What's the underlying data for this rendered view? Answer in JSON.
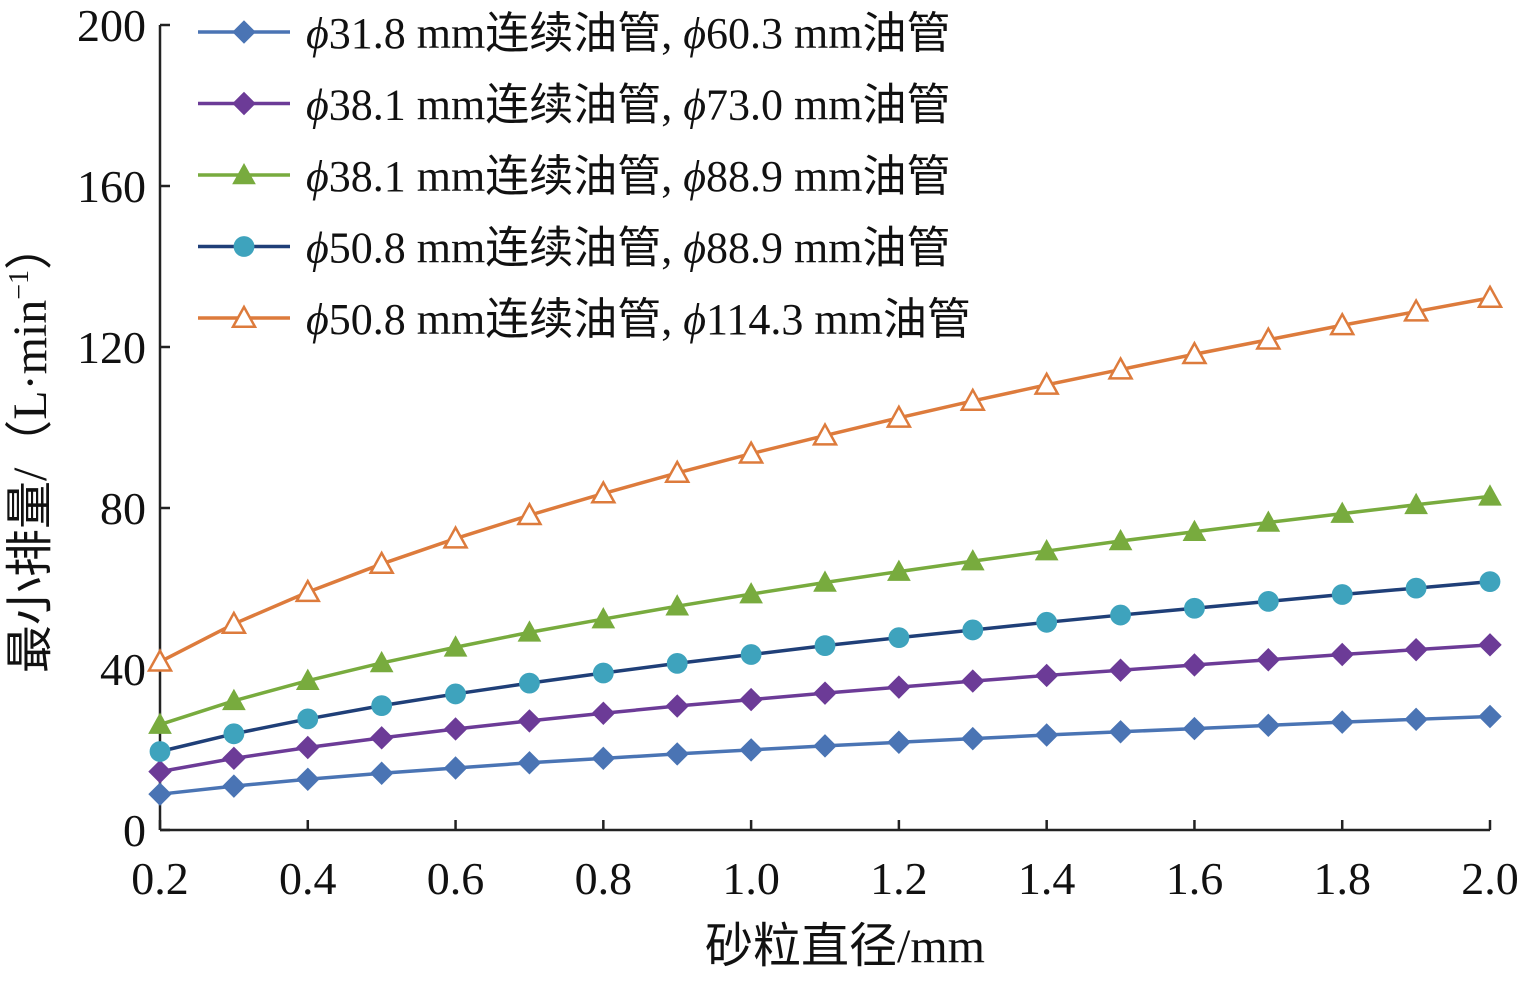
{
  "chart_data": {
    "type": "line",
    "title": "",
    "xlabel": "砂粒直径/mm",
    "ylabel_main": "最小排量/（L·min",
    "ylabel_sup": "−1",
    "ylabel_close": "）",
    "xlim": [
      0.2,
      2.0
    ],
    "ylim": [
      0,
      200
    ],
    "xticks": [
      "0.2",
      "0.4",
      "0.6",
      "0.8",
      "1.0",
      "1.2",
      "1.4",
      "1.6",
      "1.8",
      "2.0"
    ],
    "yticks": [
      "0",
      "40",
      "80",
      "120",
      "160",
      "200"
    ],
    "legend_position": "top-left",
    "grid": false,
    "x": [
      0.2,
      0.3,
      0.4,
      0.5,
      0.6,
      0.7,
      0.8,
      0.9,
      1.0,
      1.1,
      1.2,
      1.3,
      1.4,
      1.5,
      1.6,
      1.7,
      1.8,
      1.9,
      2.0
    ],
    "series": [
      {
        "name": "ϕ31.8 mm连续油管, ϕ60.3 mm油管",
        "name_prefix": "ϕ",
        "name_rest": "31.8 mm连续油管, ",
        "name_prefix2": "ϕ",
        "name_rest2": "60.3 mm油管",
        "color": "#4a74b4",
        "marker": "diamond",
        "values": [
          8.9,
          10.9,
          12.6,
          14.1,
          15.4,
          16.7,
          17.8,
          18.9,
          19.9,
          20.9,
          21.8,
          22.7,
          23.6,
          24.4,
          25.2,
          26.0,
          26.8,
          27.5,
          28.2
        ]
      },
      {
        "name": "ϕ38.1 mm连续油管, ϕ73.0 mm油管",
        "name_prefix": "ϕ",
        "name_rest": "38.1 mm连续油管, ",
        "name_prefix2": "ϕ",
        "name_rest2": "73.0 mm油管",
        "color": "#6c3b97",
        "marker": "diamond",
        "values": [
          14.5,
          17.8,
          20.5,
          22.9,
          25.1,
          27.1,
          29.0,
          30.8,
          32.4,
          34.0,
          35.5,
          37.0,
          38.4,
          39.7,
          41.0,
          42.3,
          43.6,
          44.8,
          46.0
        ]
      },
      {
        "name": "ϕ38.1 mm连续油管, ϕ88.9 mm油管",
        "name_prefix": "ϕ",
        "name_rest": "38.1 mm连续油管, ",
        "name_prefix2": "ϕ",
        "name_rest2": "88.9 mm油管",
        "color": "#78ab3e",
        "marker": "triangle",
        "values": [
          26.2,
          32.1,
          37.1,
          41.5,
          45.4,
          49.1,
          52.4,
          55.6,
          58.6,
          61.5,
          64.2,
          66.8,
          69.3,
          71.8,
          74.1,
          76.4,
          78.6,
          80.8,
          82.9
        ]
      },
      {
        "name": "ϕ50.8 mm连续油管, ϕ88.9 mm油管",
        "name_prefix": "ϕ",
        "name_rest": "50.8 mm连续油管, ",
        "name_prefix2": "ϕ",
        "name_rest2": "88.9 mm油管",
        "color": "#1f3f78",
        "marker_fill": "#3ea3bd",
        "marker": "circle",
        "values": [
          19.5,
          23.9,
          27.6,
          30.9,
          33.8,
          36.5,
          39.0,
          41.4,
          43.6,
          45.8,
          47.8,
          49.7,
          51.6,
          53.4,
          55.1,
          56.8,
          58.5,
          60.1,
          61.7
        ]
      },
      {
        "name": "ϕ50.8 mm连续油管, ϕ114.3 mm油管",
        "name_prefix": "ϕ",
        "name_rest": "50.8 mm连续油管, ",
        "name_prefix2": "ϕ",
        "name_rest2": "114.3 mm油管",
        "color": "#dd7b3c",
        "marker": "triangle-open",
        "values": [
          41.8,
          51.2,
          59.1,
          66.1,
          72.4,
          78.2,
          83.6,
          88.7,
          93.5,
          98.0,
          102.4,
          106.6,
          110.6,
          114.4,
          118.2,
          121.8,
          125.4,
          128.8,
          132.2
        ]
      }
    ]
  }
}
